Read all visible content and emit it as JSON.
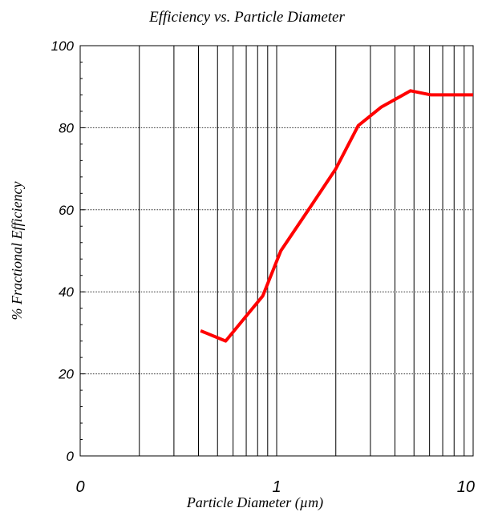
{
  "chart_data": {
    "type": "line",
    "title": "Efficiency vs. Particle Diameter",
    "xlabel": "Particle Diameter (µm)",
    "ylabel": "% Fractional Efficiency",
    "x_scale": "log",
    "xlim": [
      0.1,
      10
    ],
    "ylim": [
      0,
      100
    ],
    "x_ticks": [
      {
        "value": 0.1,
        "label": "0"
      },
      {
        "value": 1,
        "label": "1"
      },
      {
        "value": 10,
        "label": "10"
      }
    ],
    "y_ticks": [
      0,
      20,
      40,
      60,
      80,
      100
    ],
    "grid": true,
    "series": [
      {
        "color": "#ff0000",
        "x": [
          0.41,
          0.55,
          0.85,
          1.05,
          1.5,
          2.0,
          2.6,
          3.4,
          4.8,
          6.1,
          10
        ],
        "y": [
          30.5,
          28,
          39,
          50,
          61,
          70,
          80.5,
          85,
          89,
          88,
          88
        ]
      }
    ]
  }
}
